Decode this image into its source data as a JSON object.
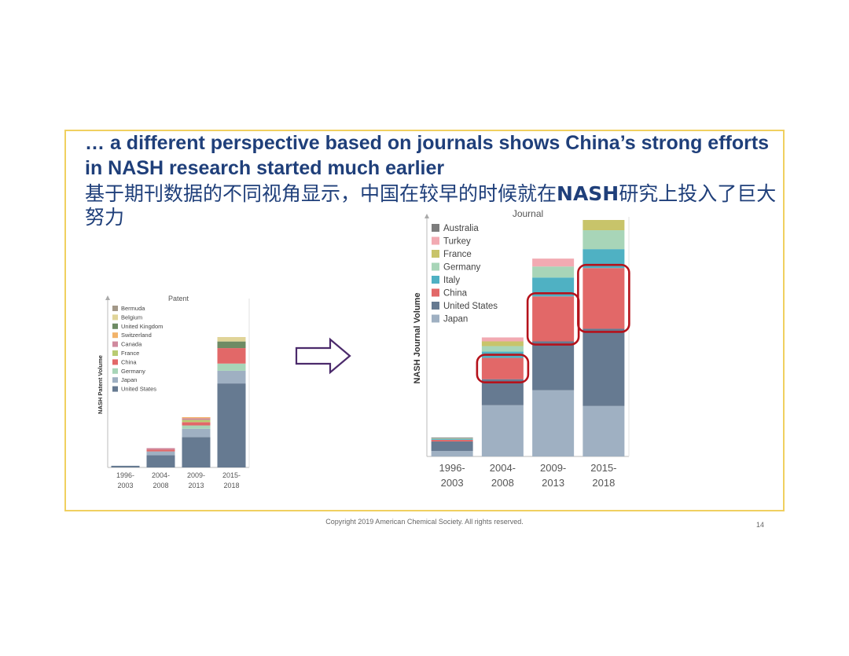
{
  "slide": {
    "title_en": "… a different perspective based on journals shows China’s strong efforts in NASH research started much earlier",
    "title_cn_part1": "基于期刊数据的不同视角显示，中国在较早的时候就在",
    "title_cn_bold": "NASH",
    "title_cn_part2": "研究上投入了巨大努力",
    "copyright": "Copyright 2019 American Chemical Society. All rights reserved.",
    "page_number": "14",
    "frame_color": "#f0d060",
    "title_color": "#1f3f7a",
    "arrow_icon": "right-arrow-outline-icon",
    "highlight_color": "#b5121b"
  },
  "chart_data": [
    {
      "type": "bar",
      "stacked": true,
      "title": "Patent",
      "xlabel": "",
      "ylabel": "NASH Patent Volume",
      "legend_position": "top-left-inside",
      "grid": false,
      "ylim": [
        0,
        300
      ],
      "categories": [
        "1996-\n2003",
        "2004-\n2008",
        "2009-\n2013",
        "2015-\n2018"
      ],
      "series": [
        {
          "name": "United States",
          "color": "#667a91",
          "values": [
            3,
            22,
            55,
            152
          ]
        },
        {
          "name": "Japan",
          "color": "#9fb0c2",
          "values": [
            0,
            7,
            15,
            23
          ]
        },
        {
          "name": "Germany",
          "color": "#a8d5b8",
          "values": [
            0,
            0,
            6,
            13
          ]
        },
        {
          "name": "China",
          "color": "#e26868",
          "values": [
            0,
            3,
            6,
            28
          ]
        },
        {
          "name": "France",
          "color": "#b9cc72",
          "values": [
            0,
            0,
            4,
            0
          ]
        },
        {
          "name": "Canada",
          "color": "#d08a9e",
          "values": [
            0,
            3,
            3,
            0
          ]
        },
        {
          "name": "Switzerland",
          "color": "#f2b36a",
          "values": [
            0,
            0,
            2,
            0
          ]
        },
        {
          "name": "United Kingdom",
          "color": "#6e8b64",
          "values": [
            0,
            0,
            0,
            12
          ]
        },
        {
          "name": "Belgium",
          "color": "#e0d498",
          "values": [
            0,
            0,
            0,
            8
          ]
        },
        {
          "name": "Bermuda",
          "color": "#a39888",
          "values": [
            0,
            0,
            0,
            0
          ]
        }
      ],
      "legend_order": [
        "Bermuda",
        "Belgium",
        "United Kingdom",
        "Switzerland",
        "Canada",
        "France",
        "China",
        "Germany",
        "Japan",
        "United States"
      ]
    },
    {
      "type": "bar",
      "stacked": true,
      "title": "Journal",
      "xlabel": "",
      "ylabel": "NASH Journal Volume",
      "legend_position": "top-left-inside",
      "grid": false,
      "ylim": [
        0,
        300
      ],
      "categories": [
        "1996-\n2003",
        "2004-\n2008",
        "2009-\n2013",
        "2015-\n2018"
      ],
      "series": [
        {
          "name": "Japan",
          "color": "#9fb0c2",
          "values": [
            7,
            65,
            84,
            64
          ]
        },
        {
          "name": "United States",
          "color": "#667a91",
          "values": [
            12,
            33,
            62,
            98
          ]
        },
        {
          "name": "China",
          "color": "#e26868",
          "values": [
            2,
            27,
            57,
            77
          ]
        },
        {
          "name": "Italy",
          "color": "#4fb1c3",
          "values": [
            1,
            8,
            24,
            24
          ]
        },
        {
          "name": "Germany",
          "color": "#a8d5b8",
          "values": [
            1,
            7,
            14,
            24
          ]
        },
        {
          "name": "France",
          "color": "#c8c46a",
          "values": [
            0,
            6,
            0,
            13
          ]
        },
        {
          "name": "Turkey",
          "color": "#f2aab2",
          "values": [
            0,
            5,
            10,
            0
          ]
        },
        {
          "name": "Australia",
          "color": "#7d7d7d",
          "values": [
            1,
            0,
            0,
            0
          ]
        }
      ],
      "legend_order": [
        "Australia",
        "Turkey",
        "France",
        "Germany",
        "Italy",
        "China",
        "United States",
        "Japan"
      ],
      "highlighted_series": "China"
    }
  ]
}
